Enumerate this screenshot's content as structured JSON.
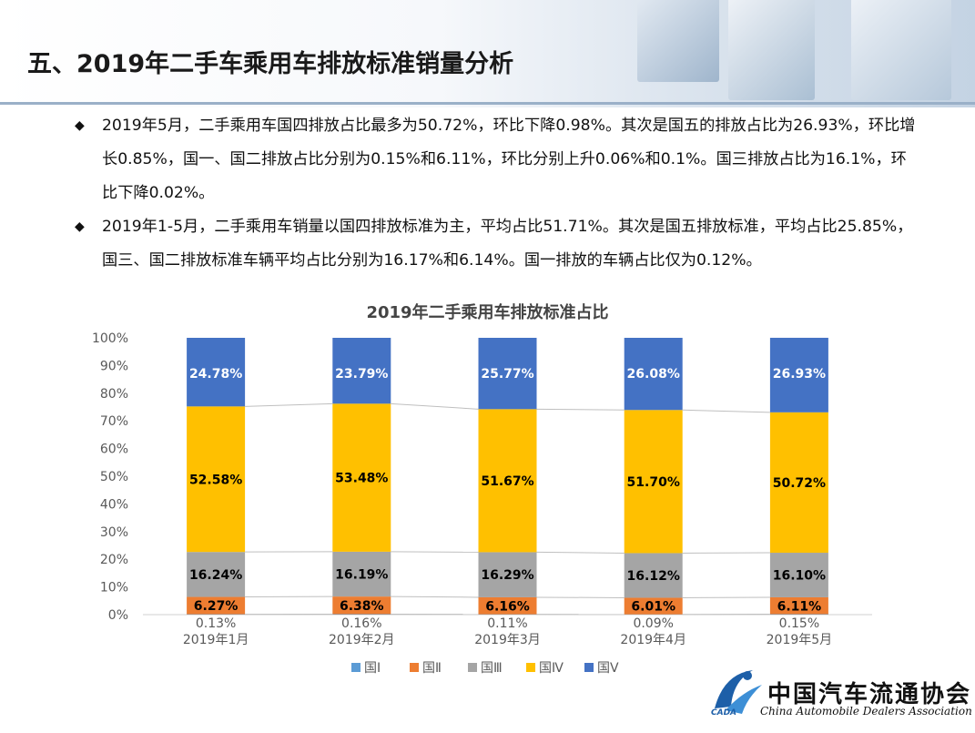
{
  "header": {
    "title": "五、2019年二手车乘用车排放标准销量分析"
  },
  "bullets": [
    "2019年5月，二手乘用车国四排放占比最多为50.72%，环比下降0.98%。其次是国五的排放占比为26.93%，环比增长0.85%，国一、国二排放占比分别为0.15%和6.11%，环比分别上升0.06%和0.1%。国三排放占比为16.1%，环比下降0.02%。",
    "2019年1-5月，二手乘用车销量以国四排放标准为主，平均占比51.71%。其次是国五排放标准，平均占比25.85%，国三、国二排放标准车辆平均占比分别为16.17%和6.14%。国一排放的车辆占比仅为0.12%。"
  ],
  "chart_data": {
    "type": "bar",
    "stacked": "percent",
    "title": "2019年二手乘用车排放标准占比",
    "categories": [
      "2019年1月",
      "2019年2月",
      "2019年3月",
      "2019年4月",
      "2019年5月"
    ],
    "series": [
      {
        "name": "国Ⅰ",
        "color": "#5b9bd5",
        "values": [
          0.13,
          0.16,
          0.11,
          0.09,
          0.15
        ],
        "labels": [
          "0.13%",
          "0.16%",
          "0.11%",
          "0.09%",
          "0.15%"
        ]
      },
      {
        "name": "国Ⅱ",
        "color": "#ed7d31",
        "values": [
          6.27,
          6.38,
          6.16,
          6.01,
          6.11
        ],
        "labels": [
          "6.27%",
          "6.38%",
          "6.16%",
          "6.01%",
          "6.11%"
        ]
      },
      {
        "name": "国Ⅲ",
        "color": "#a5a5a5",
        "values": [
          16.24,
          16.19,
          16.29,
          16.12,
          16.1
        ],
        "labels": [
          "16.24%",
          "16.19%",
          "16.29%",
          "16.12%",
          "16.10%"
        ]
      },
      {
        "name": "国Ⅳ",
        "color": "#ffc000",
        "values": [
          52.58,
          53.48,
          51.67,
          51.7,
          50.72
        ],
        "labels": [
          "52.58%",
          "53.48%",
          "51.67%",
          "51.70%",
          "50.72%"
        ]
      },
      {
        "name": "国Ⅴ",
        "color": "#4472c4",
        "values": [
          24.78,
          23.79,
          25.77,
          26.08,
          26.93
        ],
        "labels": [
          "24.78%",
          "23.79%",
          "25.77%",
          "26.08%",
          "26.93%"
        ]
      }
    ],
    "yticks": [
      "0%",
      "10%",
      "20%",
      "30%",
      "40%",
      "50%",
      "60%",
      "70%",
      "80%",
      "90%",
      "100%"
    ],
    "ylim": [
      0,
      100
    ],
    "grid": false,
    "series_lines": true,
    "legend_position": "bottom"
  },
  "logo": {
    "cn": "中国汽车流通协会",
    "en": "China Automobile Dealers Association",
    "abbr": "CADA"
  }
}
